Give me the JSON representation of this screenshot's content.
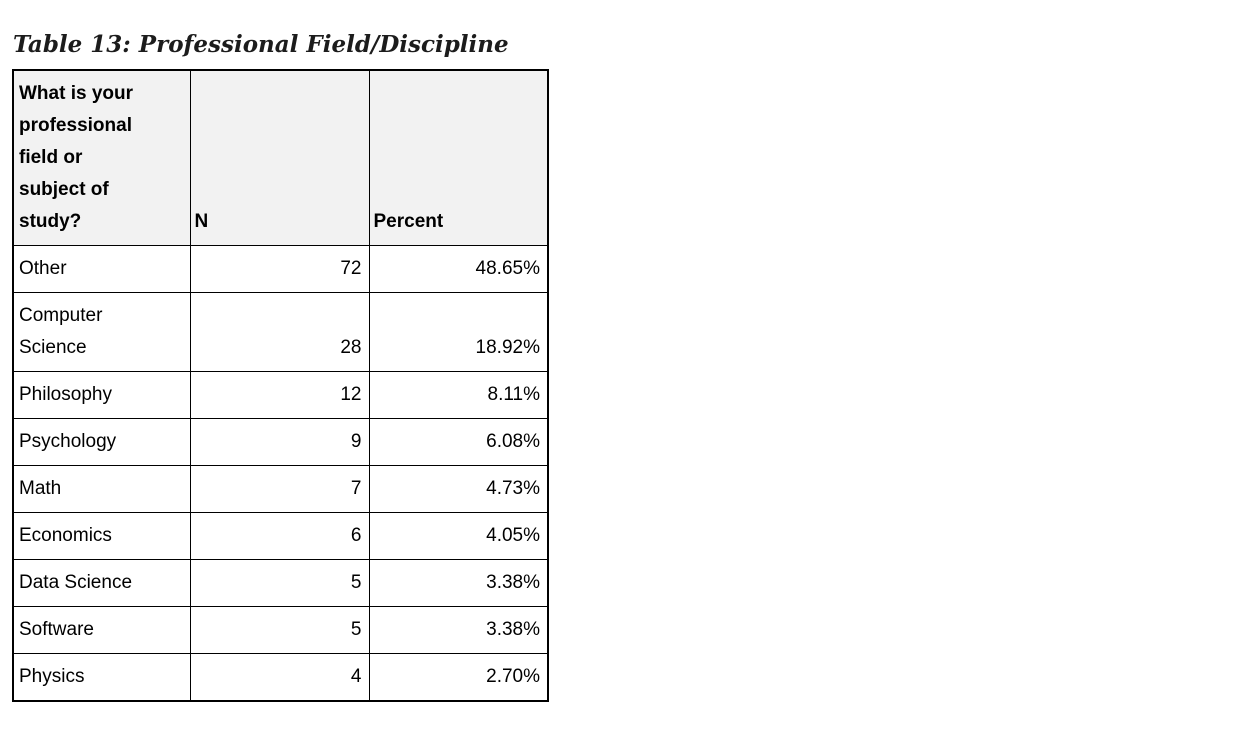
{
  "page": {
    "background": "#ffffff"
  },
  "caption": "Table 13: Professional Field/Discipline",
  "table": {
    "header_bg": "#f2f2f2",
    "border_color": "#000000",
    "header": {
      "question": "What is your professional field or subject of study?",
      "n": "N",
      "percent": "Percent"
    },
    "rows": [
      {
        "field": "Other",
        "n": "72",
        "percent": "48.65%"
      },
      {
        "field": "Computer Science",
        "n": "28",
        "percent": "18.92%"
      },
      {
        "field": "Philosophy",
        "n": "12",
        "percent": "8.11%"
      },
      {
        "field": "Psychology",
        "n": "9",
        "percent": "6.08%"
      },
      {
        "field": "Math",
        "n": "7",
        "percent": "4.73%"
      },
      {
        "field": "Economics",
        "n": "6",
        "percent": "4.05%"
      },
      {
        "field": "Data Science",
        "n": "5",
        "percent": "3.38%"
      },
      {
        "field": "Software",
        "n": "5",
        "percent": "3.38%"
      },
      {
        "field": "Physics",
        "n": "4",
        "percent": "2.70%"
      }
    ]
  }
}
